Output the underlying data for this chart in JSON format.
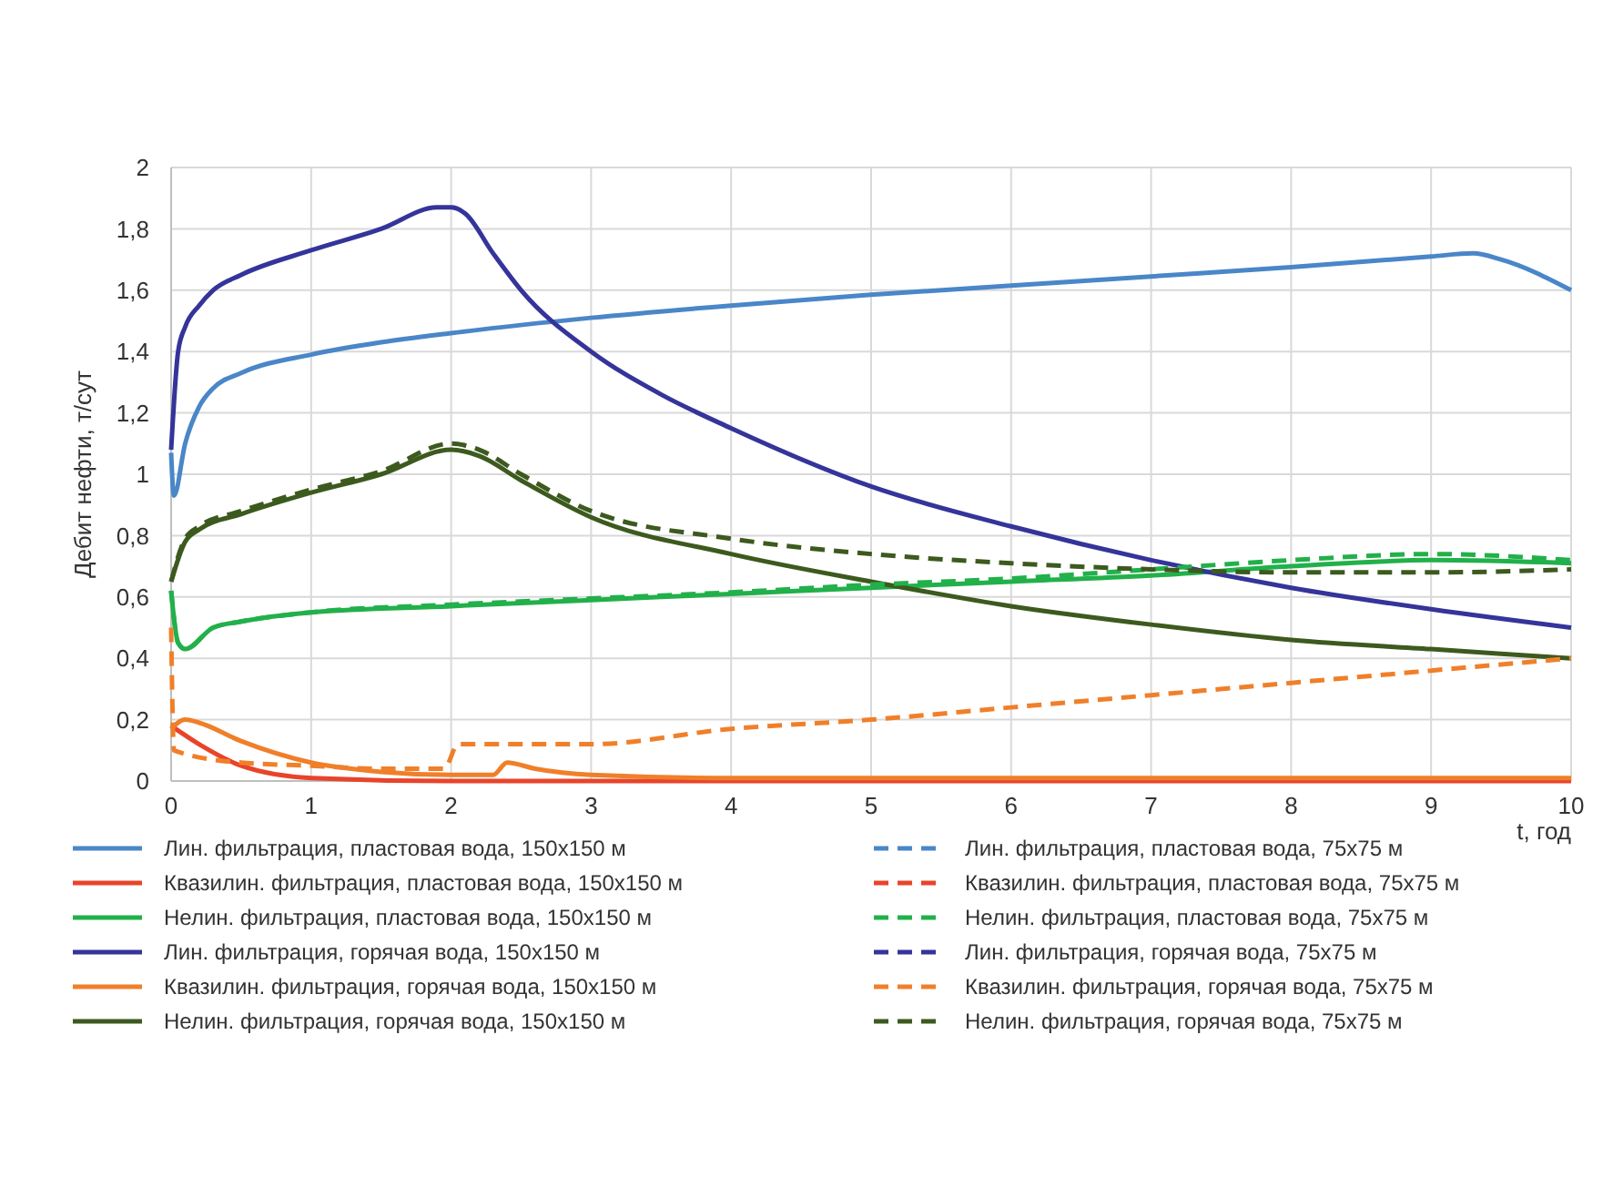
{
  "chart_data": {
    "type": "line",
    "xlabel": "t, год",
    "ylabel": "Дебит нефти, т/сут",
    "xlim": [
      0,
      10
    ],
    "ylim": [
      0,
      2
    ],
    "xticks": [
      0,
      1,
      2,
      3,
      4,
      5,
      6,
      7,
      8,
      9,
      10
    ],
    "yticks": [
      0,
      {
        "value": 0.2,
        "label": "0,2"
      },
      {
        "value": 0.4,
        "label": "0,4"
      },
      {
        "value": 0.6,
        "label": "0,6"
      },
      {
        "value": 0.8,
        "label": "0,8"
      },
      1,
      {
        "value": 1.2,
        "label": "1,2"
      },
      {
        "value": 1.4,
        "label": "1,4"
      },
      {
        "value": 1.6,
        "label": "1,6"
      },
      {
        "value": 1.8,
        "label": "1,8"
      },
      2
    ],
    "grid": true,
    "legend": "bottom",
    "marker": "none",
    "series": [
      {
        "name": "Лин. фильтрация, пластовая вода, 150x150 м",
        "color": "#4a86c8",
        "line_style": "solid",
        "x": [
          0,
          0.02,
          0.1,
          0.2,
          0.3,
          0.5,
          1,
          1.5,
          2,
          3,
          4,
          5,
          6,
          7,
          8,
          9,
          9.3,
          9.5,
          10
        ],
        "values": [
          1.07,
          0.93,
          1.1,
          1.22,
          1.28,
          1.33,
          1.39,
          1.43,
          1.46,
          1.51,
          1.55,
          1.585,
          1.615,
          1.645,
          1.675,
          1.71,
          1.72,
          1.7,
          1.6
        ]
      },
      {
        "name": "Квазилин. фильтрация, пластовая вода, 150x150 м",
        "color": "#e8442a",
        "line_style": "solid",
        "x": [
          0,
          0.2,
          0.5,
          1,
          2,
          10
        ],
        "values": [
          0.18,
          0.12,
          0.05,
          0.01,
          0,
          0
        ]
      },
      {
        "name": "Нелин. фильтрация, пластовая вода, 150x150 м",
        "color": "#22b04a",
        "line_style": "solid",
        "x": [
          0,
          0.05,
          0.1,
          0.3,
          0.5,
          1,
          2,
          3,
          4,
          5,
          6,
          7,
          8,
          9,
          10
        ],
        "values": [
          0.62,
          0.45,
          0.43,
          0.5,
          0.52,
          0.55,
          0.57,
          0.59,
          0.61,
          0.63,
          0.65,
          0.67,
          0.7,
          0.72,
          0.71
        ]
      },
      {
        "name": "Лин. фильтрация, горячая вода, 150x150 м",
        "color": "#34349a",
        "line_style": "solid",
        "x": [
          0,
          0.05,
          0.1,
          0.2,
          0.3,
          0.5,
          1,
          1.5,
          1.9,
          2,
          2.1,
          2.3,
          2.5,
          3,
          3.5,
          4,
          5,
          6,
          7,
          8,
          9,
          10
        ],
        "values": [
          1.08,
          1.4,
          1.48,
          1.55,
          1.6,
          1.65,
          1.73,
          1.8,
          1.87,
          1.87,
          1.85,
          1.72,
          1.6,
          1.4,
          1.26,
          1.15,
          0.96,
          0.83,
          0.72,
          0.63,
          0.56,
          0.5
        ]
      },
      {
        "name": "Квазилин. фильтрация, горячая вода, 150x150 м",
        "color": "#f07f2a",
        "line_style": "solid",
        "x": [
          0,
          0.1,
          0.2,
          0.5,
          1,
          1.5,
          2,
          2.3,
          2.4,
          2.6,
          3,
          4,
          10
        ],
        "values": [
          0.17,
          0.2,
          0.19,
          0.13,
          0.06,
          0.03,
          0.02,
          0.02,
          0.06,
          0.04,
          0.02,
          0.01,
          0.01
        ]
      },
      {
        "name": "Нелин. фильтрация, горячая вода, 150x150 м",
        "color": "#3d5a1e",
        "line_style": "solid",
        "x": [
          0,
          0.1,
          0.2,
          0.5,
          1,
          1.5,
          2,
          2.2,
          2.5,
          3,
          4,
          5,
          6,
          7,
          8,
          9,
          10
        ],
        "values": [
          0.65,
          0.78,
          0.82,
          0.87,
          0.94,
          1.0,
          1.08,
          1.06,
          0.98,
          0.86,
          0.74,
          0.65,
          0.57,
          0.51,
          0.46,
          0.43,
          0.4
        ]
      },
      {
        "name": "Лин. фильтрация, пластовая вода, 75x75 м",
        "color": "#4a86c8",
        "line_style": "dashed"
      },
      {
        "name": "Квазилин. фильтрация, пластовая вода, 75x75 м",
        "color": "#e8442a",
        "line_style": "dashed"
      },
      {
        "name": "Нелин. фильтрация, пластовая вода, 75x75 м",
        "color": "#22b04a",
        "line_style": "dashed",
        "x": [
          0,
          0.05,
          0.1,
          0.3,
          0.5,
          1,
          2,
          3,
          4,
          5,
          6,
          7,
          8,
          9,
          10
        ],
        "values": [
          0.62,
          0.45,
          0.43,
          0.5,
          0.52,
          0.55,
          0.575,
          0.595,
          0.615,
          0.64,
          0.66,
          0.69,
          0.72,
          0.74,
          0.72
        ]
      },
      {
        "name": "Лин. фильтрация, горячая вода, 75x75 м",
        "color": "#34349a",
        "line_style": "dashed"
      },
      {
        "name": "Квазилин. фильтрация, горячая вода, 75x75 м",
        "color": "#f07f2a",
        "line_style": "dashed",
        "x": [
          0,
          0.02,
          0.5,
          1,
          1.5,
          1.95,
          2.05,
          3,
          4,
          5,
          6,
          7,
          8,
          9,
          10
        ],
        "values": [
          0.5,
          0.1,
          0.06,
          0.05,
          0.04,
          0.04,
          0.12,
          0.12,
          0.17,
          0.2,
          0.24,
          0.28,
          0.32,
          0.36,
          0.4
        ]
      },
      {
        "name": "Нелин. фильтрация, горячая вода, 75x75 м",
        "color": "#3d5a1e",
        "line_style": "dashed",
        "x": [
          0,
          0.1,
          0.2,
          0.5,
          1,
          1.5,
          2,
          2.2,
          2.5,
          3,
          4,
          5,
          6,
          7,
          8,
          9,
          10
        ],
        "values": [
          0.65,
          0.79,
          0.83,
          0.88,
          0.95,
          1.01,
          1.1,
          1.08,
          1.0,
          0.88,
          0.79,
          0.74,
          0.71,
          0.69,
          0.68,
          0.68,
          0.69
        ]
      }
    ]
  }
}
